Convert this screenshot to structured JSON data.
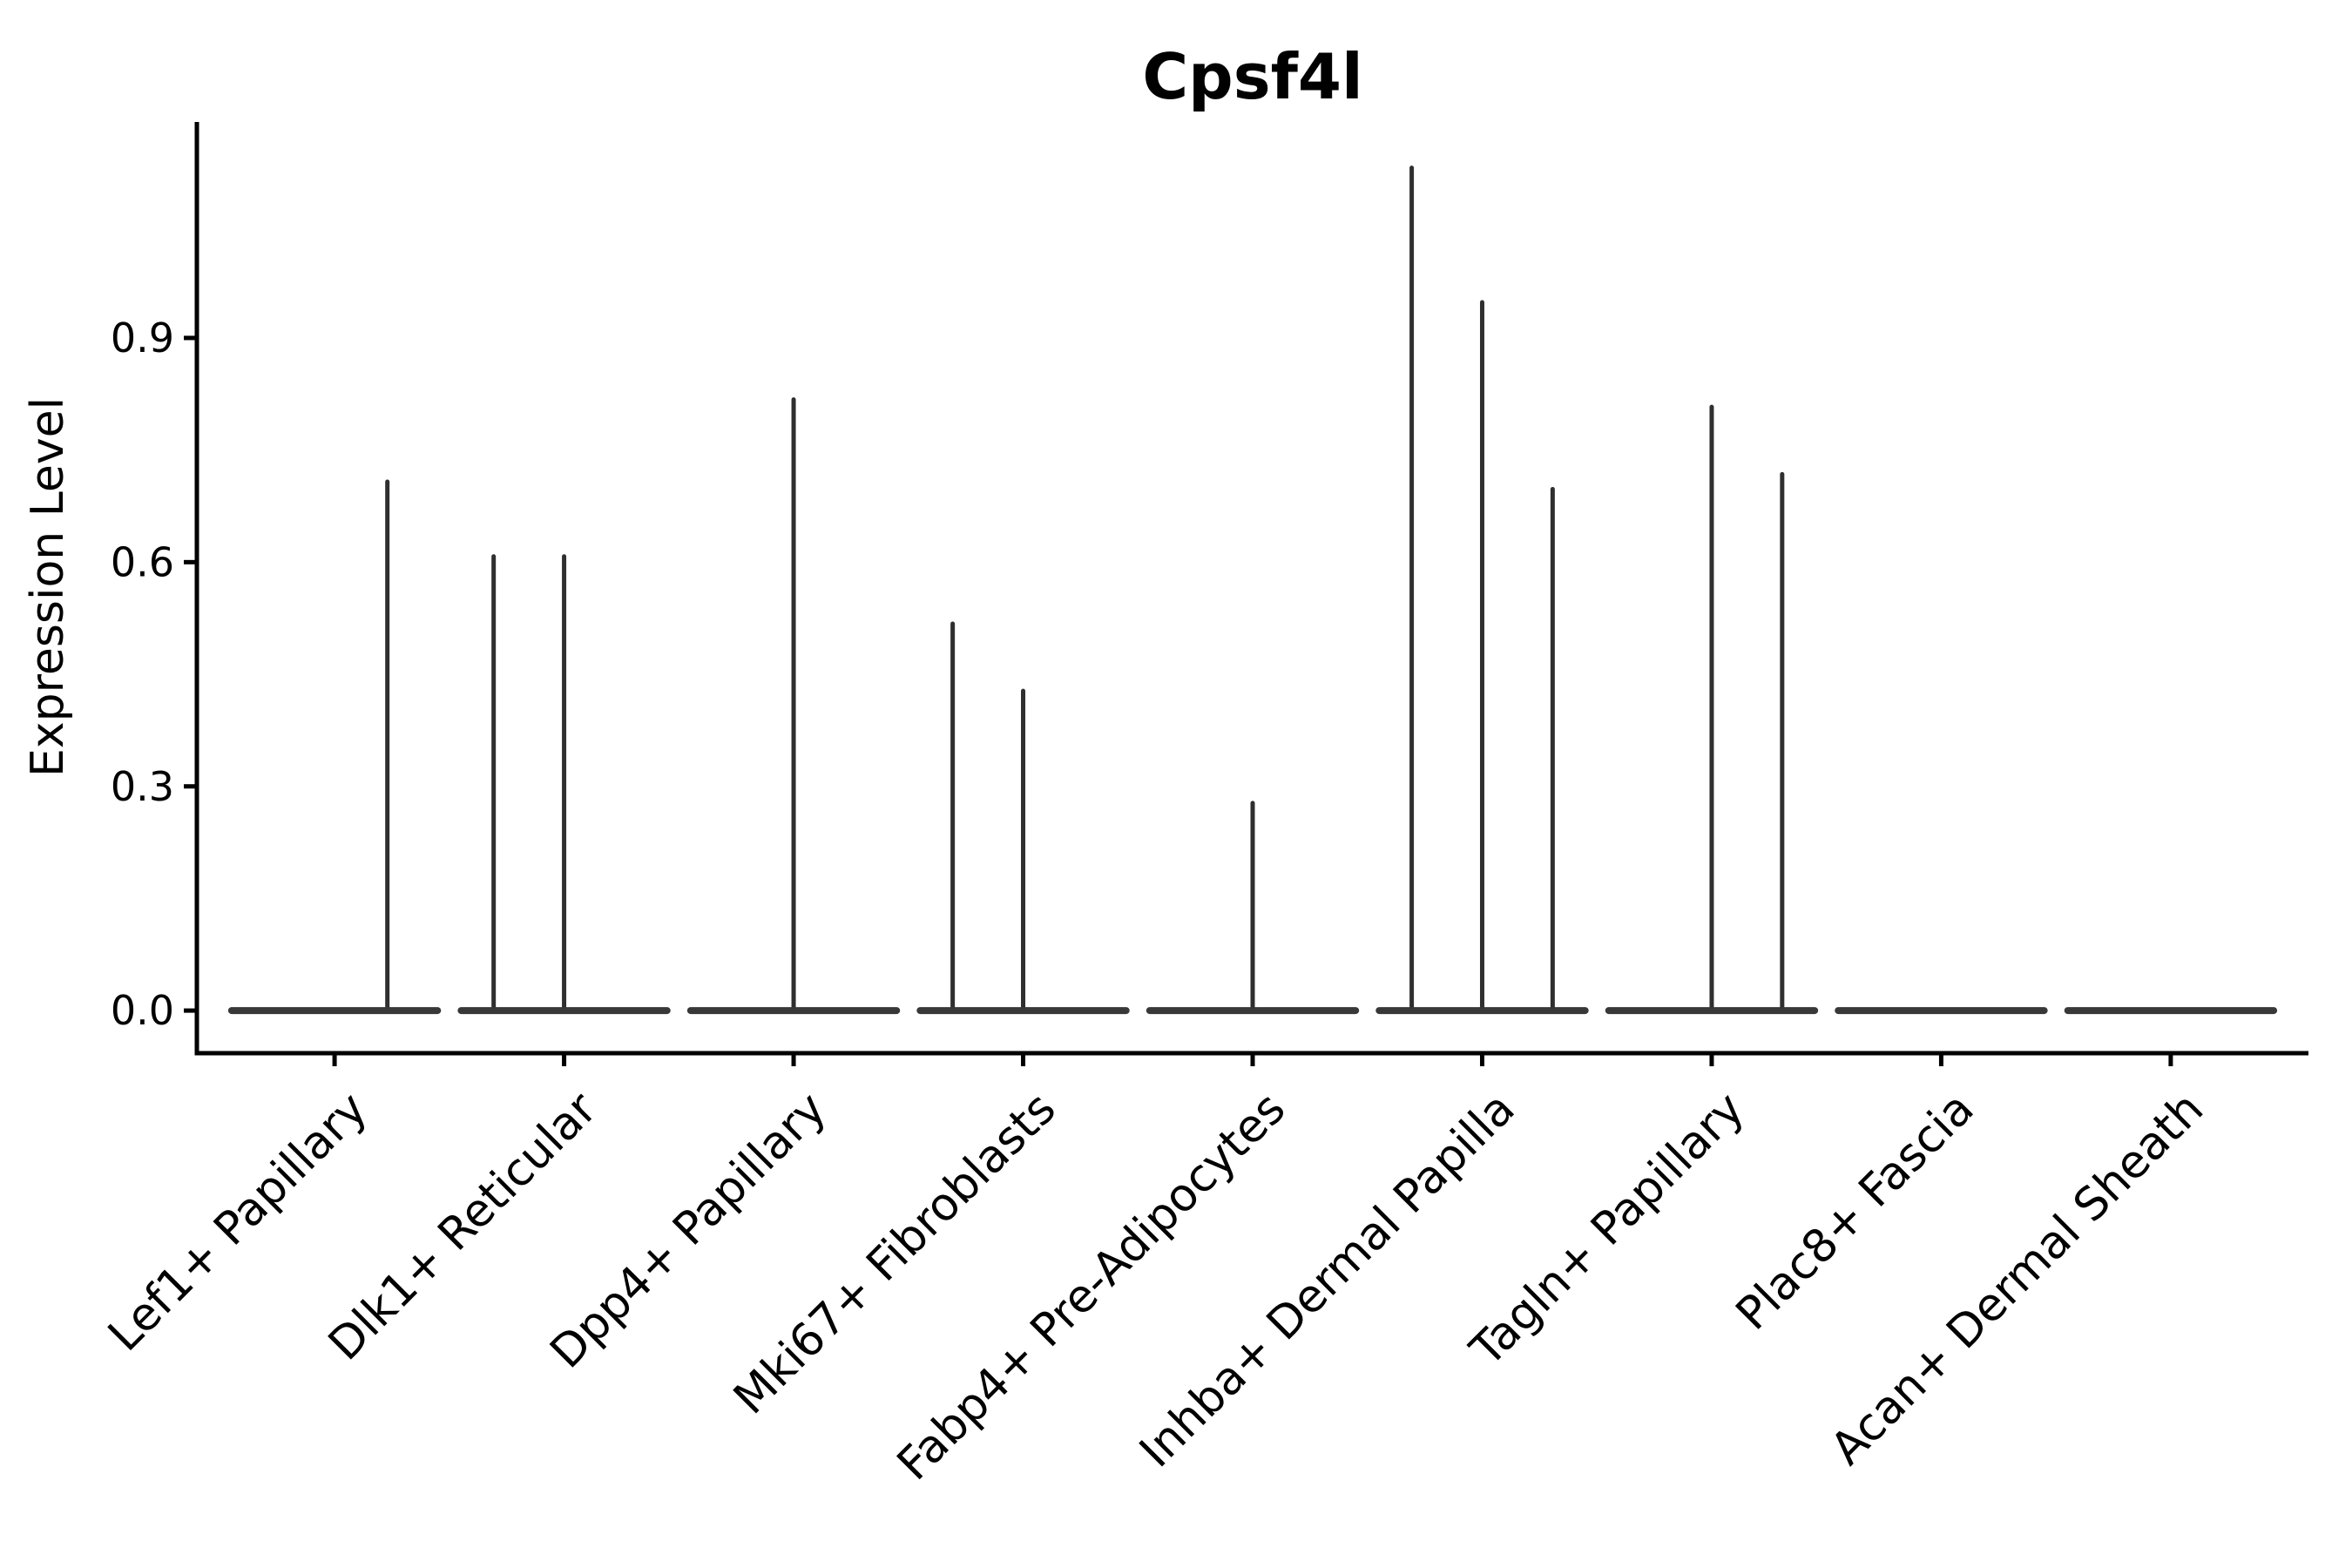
{
  "title": "Cpsf4l",
  "y_axis": {
    "label": "Expression Level",
    "tick_labels": [
      "0.0",
      "0.3",
      "0.6",
      "0.9"
    ]
  },
  "chart_data": {
    "type": "violin",
    "title": "Cpsf4l",
    "xlabel": "",
    "ylabel": "Expression Level",
    "ylim": [
      -0.057,
      1.189
    ],
    "yticks": [
      {
        "value": 0.0,
        "label": "0.0"
      },
      {
        "value": 0.3,
        "label": "0.3"
      },
      {
        "value": 0.6,
        "label": "0.6"
      },
      {
        "value": 0.9,
        "label": "0.9"
      }
    ],
    "grid": false,
    "legend": "none",
    "background": "#ffffff",
    "axis_color": "#000000",
    "violin_body_color": "#383838",
    "violin_spike_color": "#2f2f2f",
    "violin_total_width": 0.92,
    "categories": [
      "Lef1+ Papillary",
      "Dlk1+ Reticular",
      "Dpp4+ Papillary",
      "Mki67+ Fibroblasts",
      "Fabp4+ Pre-Adipocytes",
      "Inhba+ Dermal Papilla",
      "Tagln+ Papillary",
      "Plac8+ Fascia",
      "Acan+ Dermal Sheath"
    ],
    "series": [
      {
        "category": "Lef1+ Papillary",
        "spikes": [
          {
            "offset": 0.23,
            "max": 0.71
          }
        ]
      },
      {
        "category": "Dlk1+ Reticular",
        "spikes": [
          {
            "offset": -0.307,
            "max": 0.61
          },
          {
            "offset": 0.0,
            "max": 0.61
          }
        ]
      },
      {
        "category": "Dpp4+ Papillary",
        "spikes": [
          {
            "offset": 0.0,
            "max": 0.82
          }
        ]
      },
      {
        "category": "Mki67+ Fibroblasts",
        "spikes": [
          {
            "offset": -0.307,
            "max": 0.52
          },
          {
            "offset": 0.0,
            "max": 0.43
          }
        ]
      },
      {
        "category": "Fabp4+ Pre-Adipocytes",
        "spikes": [
          {
            "offset": 0.0,
            "max": 0.28
          }
        ]
      },
      {
        "category": "Inhba+ Dermal Papilla",
        "spikes": [
          {
            "offset": -0.307,
            "max": 1.13
          },
          {
            "offset": 0.0,
            "max": 0.95
          },
          {
            "offset": 0.307,
            "max": 0.7
          }
        ]
      },
      {
        "category": "Tagln+ Papillary",
        "spikes": [
          {
            "offset": 0.0,
            "max": 0.81
          },
          {
            "offset": 0.307,
            "max": 0.72
          }
        ]
      },
      {
        "category": "Plac8+ Fascia",
        "spikes": []
      },
      {
        "category": "Acan+ Dermal Sheath",
        "spikes": []
      }
    ]
  }
}
